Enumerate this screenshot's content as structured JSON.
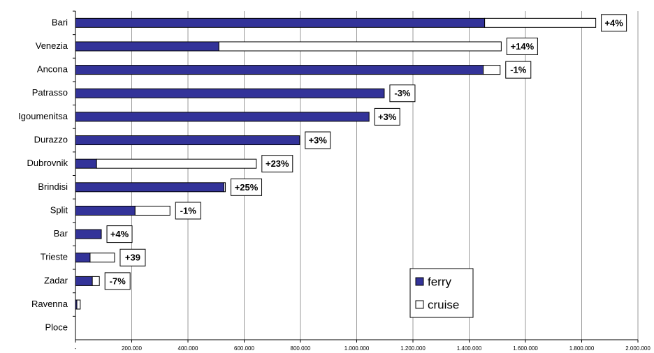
{
  "chart_data": {
    "type": "stacked-bar-horizontal",
    "categories": [
      "Bari",
      "Venezia",
      "Ancona",
      "Patrasso",
      "Igoumenitsa",
      "Durazzo",
      "Dubrovnik",
      "Brindisi",
      "Split",
      "Bar",
      "Trieste",
      "Zadar",
      "Ravenna",
      "Ploce"
    ],
    "series": [
      {
        "name": "ferry",
        "color": "#333399",
        "values": [
          1455000,
          510000,
          1450000,
          1098000,
          1044000,
          797000,
          75000,
          528000,
          212000,
          92000,
          52000,
          60000,
          5000,
          0
        ]
      },
      {
        "name": "cruise",
        "color": "#ffffff",
        "values": [
          395000,
          1004000,
          60000,
          0,
          0,
          0,
          568000,
          5000,
          124000,
          0,
          87000,
          25000,
          12000,
          0
        ]
      }
    ],
    "annotations": [
      "+4%",
      "+14%",
      "-1%",
      "-3%",
      "+3%",
      "+3%",
      "+23%",
      "+25%",
      "-1%",
      "+4%",
      "+39",
      "-7%",
      null,
      null
    ],
    "xlim": [
      0,
      2000000
    ],
    "xticks": [
      {
        "value": 0,
        "label": "-"
      },
      {
        "value": 200000,
        "label": "200.000"
      },
      {
        "value": 400000,
        "label": "400.000"
      },
      {
        "value": 600000,
        "label": "600.000"
      },
      {
        "value": 800000,
        "label": "800.000"
      },
      {
        "value": 1000000,
        "label": "1.000.000"
      },
      {
        "value": 1200000,
        "label": "1.200.000"
      },
      {
        "value": 1400000,
        "label": "1.400.000"
      },
      {
        "value": 1600000,
        "label": "1.600.000"
      },
      {
        "value": 1800000,
        "label": "1.800.000"
      },
      {
        "value": 2000000,
        "label": "2.000.000"
      }
    ],
    "grid": true,
    "legend": "lower right"
  }
}
